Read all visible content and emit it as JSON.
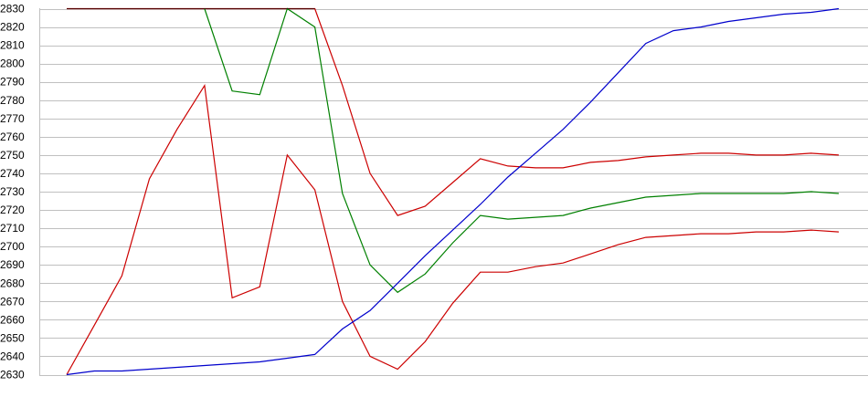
{
  "chart_data": {
    "type": "line",
    "title": "",
    "xlabel": "",
    "ylabel": "",
    "ylim": [
      2630,
      2830
    ],
    "yticks": [
      "2630",
      "2640",
      "2650",
      "2660",
      "2670",
      "2680",
      "2690",
      "2700",
      "2710",
      "2720",
      "2730",
      "2740",
      "2750",
      "2760",
      "2770",
      "2780",
      "2790",
      "2800",
      "2810",
      "2820",
      "2830"
    ],
    "grid": true,
    "legend": "none",
    "x": [
      0,
      1,
      2,
      3,
      4,
      5,
      6,
      7,
      8,
      9,
      10,
      11,
      12,
      13,
      14,
      15,
      16,
      17,
      18,
      19,
      20,
      21,
      22,
      23,
      24,
      25,
      26,
      27,
      28
    ],
    "series": [
      {
        "name": "upper-red",
        "color": "#cc0000",
        "values": [
          2830,
          2830,
          2830,
          2830,
          2830,
          2830,
          2830,
          2830,
          2830,
          2830,
          2788,
          2740,
          2717,
          2722,
          2735,
          2748,
          2744,
          2743,
          2743,
          2746,
          2747,
          2749,
          2750,
          2751,
          2751,
          2750,
          2750,
          2751,
          2750
        ]
      },
      {
        "name": "green",
        "color": "#008000",
        "values": [
          null,
          null,
          null,
          null,
          null,
          2830,
          2785,
          2783,
          2830,
          2820,
          2729,
          2690,
          2675,
          2685,
          2702,
          2717,
          2715,
          2716,
          2717,
          2721,
          2724,
          2727,
          2728,
          2729,
          2729,
          2729,
          2729,
          2730,
          2729
        ]
      },
      {
        "name": "lower-red",
        "color": "#cc0000",
        "values": [
          2630,
          2657,
          2684,
          2737,
          2764,
          2788,
          2672,
          2678,
          2750,
          2731,
          2670,
          2640,
          2633,
          2648,
          2669,
          2686,
          2686,
          2689,
          2691,
          2696,
          2701,
          2705,
          2706,
          2707,
          2707,
          2708,
          2708,
          2709,
          2708
        ]
      },
      {
        "name": "blue",
        "color": "#0000cc",
        "values": [
          2630,
          2632,
          2632,
          2633,
          2634,
          2635,
          2636,
          2637,
          2639,
          2641,
          2655,
          2665,
          2680,
          2695,
          2709,
          2723,
          2738,
          2751,
          2764,
          2779,
          2795,
          2811,
          2818,
          2820,
          2823,
          2825,
          2827,
          2828,
          2830
        ]
      }
    ],
    "top_line_color": "#000000"
  }
}
